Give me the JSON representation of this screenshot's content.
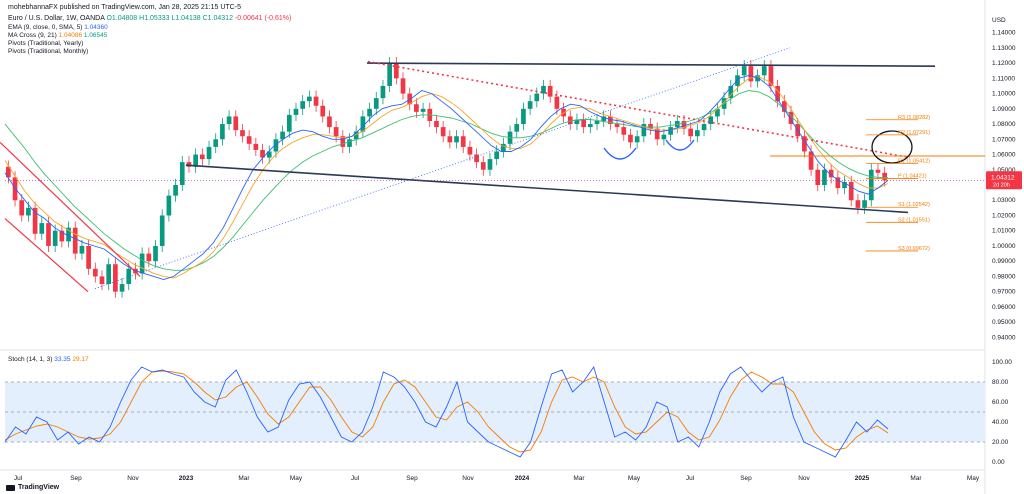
{
  "header": {
    "published": "mohebhannaFX published on TradingView.com, Jan 28, 2025 21:15 UTC-5",
    "symbol_line": "Euro / U.S. Dollar, 1W, OANDA",
    "o": "O1.04808",
    "h": "H1.05333",
    "l": "L1.04138",
    "c": "C1.04312",
    "chg": "-0.00641 (-0.61%)",
    "ema_label": "EMA (9, close, 0, SMA, 5)",
    "ema_value": "1.04360",
    "ma_label": "MA Cross (9, 21)",
    "ma_value1": "1.04086",
    "ma_value2": "1.06545",
    "pivots_yearly": "Pivots (Traditional, Yearly)",
    "pivots_monthly": "Pivots (Traditional, Monthly)"
  },
  "stoch_label": "Stoch (14, 1, 3)",
  "stoch_k": "33.35",
  "stoch_d": "29.17",
  "currency": "USD",
  "brand": "TradingView",
  "price_badge": {
    "price": "1.04312",
    "timer": "2d 20h"
  },
  "colors": {
    "up": "#089981",
    "down": "#f23645",
    "ema": "#2962ff",
    "ma_fast": "#f5a623",
    "ma_slow": "#3cbf6e",
    "pivot": "#f57c00",
    "trend": "#2a3a55",
    "channel": "#f23645",
    "stoch_k": "#2962ff",
    "stoch_d": "#f57c00",
    "stoch_band": "#e3effd"
  },
  "chart_data": {
    "type": "candlestick",
    "x_axis_labels": [
      "Jul",
      "Sep",
      "Nov",
      "2023",
      "Mar",
      "May",
      "Jul",
      "Sep",
      "Nov",
      "2024",
      "Mar",
      "May",
      "Jul",
      "Sep",
      "Nov",
      "2025",
      "Mar",
      "May"
    ],
    "y_ticks": [
      "1.14000",
      "1.13000",
      "1.12000",
      "1.11000",
      "1.10000",
      "1.09000",
      "1.08000",
      "1.07000",
      "1.06000",
      "1.05000",
      "1.04000",
      "1.03000",
      "1.02000",
      "1.01000",
      "1.00000",
      "0.99000",
      "0.98000",
      "0.97000",
      "0.96000",
      "0.95000",
      "0.94000"
    ],
    "y_tick_values": [
      1.14,
      1.13,
      1.12,
      1.11,
      1.1,
      1.09,
      1.08,
      1.07,
      1.06,
      1.05,
      1.04,
      1.03,
      1.02,
      1.01,
      1.0,
      0.99,
      0.98,
      0.97,
      0.96,
      0.95,
      0.94
    ],
    "ylim": [
      0.935,
      1.145
    ],
    "pivots": [
      {
        "label": "R3 (1.08282)",
        "value": 1.08282
      },
      {
        "label": "R2 (1.07291)",
        "value": 1.07291
      },
      {
        "label": "R1 (1.05412)",
        "value": 1.05412
      },
      {
        "label": "P (1.04421)",
        "value": 1.04421
      },
      {
        "label": "S1 (1.02542)",
        "value": 1.02542
      },
      {
        "label": "S2 (1.01551)",
        "value": 1.01551
      },
      {
        "label": "S3 (0.99672)",
        "value": 0.99672
      }
    ],
    "candles": [
      [
        1.052,
        1.045
      ],
      [
        1.045,
        1.03
      ],
      [
        1.03,
        1.02
      ],
      [
        1.02,
        1.025
      ],
      [
        1.025,
        1.008
      ],
      [
        1.008,
        1.015
      ],
      [
        1.015,
        1.0
      ],
      [
        1.0,
        1.01
      ],
      [
        1.01,
        1.003
      ],
      [
        1.003,
        1.012
      ],
      [
        1.012,
        0.995
      ],
      [
        0.995,
        1.0
      ],
      [
        1.0,
        0.985
      ],
      [
        0.985,
        0.98
      ],
      [
        0.98,
        0.975
      ],
      [
        0.975,
        0.988
      ],
      [
        0.988,
        0.97
      ],
      [
        0.97,
        0.975
      ],
      [
        0.975,
        0.985
      ],
      [
        0.985,
        0.982
      ],
      [
        0.982,
        0.995
      ],
      [
        0.995,
        0.99
      ],
      [
        0.99,
        1.0
      ],
      [
        1.0,
        1.02
      ],
      [
        1.02,
        1.033
      ],
      [
        1.033,
        1.04
      ],
      [
        1.04,
        1.055
      ],
      [
        1.055,
        1.052
      ],
      [
        1.052,
        1.06
      ],
      [
        1.06,
        1.057
      ],
      [
        1.057,
        1.065
      ],
      [
        1.065,
        1.07
      ],
      [
        1.07,
        1.08
      ],
      [
        1.08,
        1.085
      ],
      [
        1.085,
        1.076
      ],
      [
        1.076,
        1.072
      ],
      [
        1.072,
        1.067
      ],
      [
        1.067,
        1.063
      ],
      [
        1.063,
        1.058
      ],
      [
        1.058,
        1.062
      ],
      [
        1.062,
        1.07
      ],
      [
        1.07,
        1.075
      ],
      [
        1.075,
        1.086
      ],
      [
        1.086,
        1.09
      ],
      [
        1.09,
        1.095
      ],
      [
        1.095,
        1.098
      ],
      [
        1.098,
        1.092
      ],
      [
        1.092,
        1.085
      ],
      [
        1.085,
        1.078
      ],
      [
        1.078,
        1.072
      ],
      [
        1.072,
        1.065
      ],
      [
        1.065,
        1.07
      ],
      [
        1.07,
        1.075
      ],
      [
        1.075,
        1.085
      ],
      [
        1.085,
        1.09
      ],
      [
        1.09,
        1.097
      ],
      [
        1.097,
        1.105
      ],
      [
        1.105,
        1.12
      ],
      [
        1.12,
        1.11
      ],
      [
        1.11,
        1.1
      ],
      [
        1.1,
        1.093
      ],
      [
        1.093,
        1.088
      ],
      [
        1.088,
        1.09
      ],
      [
        1.09,
        1.082
      ],
      [
        1.082,
        1.078
      ],
      [
        1.078,
        1.072
      ],
      [
        1.072,
        1.068
      ],
      [
        1.068,
        1.072
      ],
      [
        1.072,
        1.065
      ],
      [
        1.065,
        1.06
      ],
      [
        1.06,
        1.055
      ],
      [
        1.055,
        1.05
      ],
      [
        1.05,
        1.057
      ],
      [
        1.057,
        1.062
      ],
      [
        1.062,
        1.067
      ],
      [
        1.067,
        1.075
      ],
      [
        1.075,
        1.08
      ],
      [
        1.08,
        1.09
      ],
      [
        1.09,
        1.095
      ],
      [
        1.095,
        1.1
      ],
      [
        1.1,
        1.105
      ],
      [
        1.105,
        1.098
      ],
      [
        1.098,
        1.09
      ],
      [
        1.09,
        1.085
      ],
      [
        1.085,
        1.08
      ],
      [
        1.08,
        1.083
      ],
      [
        1.083,
        1.078
      ],
      [
        1.078,
        1.08
      ],
      [
        1.08,
        1.082
      ],
      [
        1.082,
        1.085
      ],
      [
        1.085,
        1.08
      ],
      [
        1.08,
        1.078
      ],
      [
        1.078,
        1.073
      ],
      [
        1.073,
        1.068
      ],
      [
        1.068,
        1.072
      ],
      [
        1.072,
        1.08
      ],
      [
        1.08,
        1.077
      ],
      [
        1.077,
        1.07
      ],
      [
        1.07,
        1.073
      ],
      [
        1.073,
        1.078
      ],
      [
        1.078,
        1.082
      ],
      [
        1.082,
        1.077
      ],
      [
        1.077,
        1.072
      ],
      [
        1.072,
        1.076
      ],
      [
        1.076,
        1.08
      ],
      [
        1.08,
        1.085
      ],
      [
        1.085,
        1.09
      ],
      [
        1.09,
        1.097
      ],
      [
        1.097,
        1.105
      ],
      [
        1.105,
        1.112
      ],
      [
        1.112,
        1.118
      ],
      [
        1.118,
        1.108
      ],
      [
        1.108,
        1.112
      ],
      [
        1.112,
        1.118
      ],
      [
        1.118,
        1.105
      ],
      [
        1.105,
        1.095
      ],
      [
        1.095,
        1.088
      ],
      [
        1.088,
        1.08
      ],
      [
        1.08,
        1.072
      ],
      [
        1.072,
        1.062
      ],
      [
        1.062,
        1.05
      ],
      [
        1.05,
        1.04
      ],
      [
        1.04,
        1.05
      ],
      [
        1.05,
        1.045
      ],
      [
        1.045,
        1.038
      ],
      [
        1.038,
        1.042
      ],
      [
        1.042,
        1.03
      ],
      [
        1.03,
        1.025
      ],
      [
        1.025,
        1.03
      ],
      [
        1.03,
        1.05
      ],
      [
        1.05,
        1.048
      ],
      [
        1.048,
        1.043
      ]
    ],
    "ema_path": [
      1.048,
      1.038,
      1.03,
      1.022,
      1.018,
      1.012,
      1.008,
      1.005,
      1.002,
      1.0,
      0.998,
      0.993,
      0.988,
      0.984,
      0.982,
      0.98,
      0.978,
      0.98,
      0.985,
      0.99,
      0.995,
      1.002,
      1.012,
      1.025,
      1.038,
      1.05,
      1.058,
      1.065,
      1.07,
      1.074,
      1.076,
      1.075,
      1.072,
      1.07,
      1.07,
      1.072,
      1.078,
      1.085,
      1.09,
      1.092,
      1.093,
      1.097,
      1.102,
      1.1,
      1.095,
      1.09,
      1.084,
      1.078,
      1.072,
      1.066,
      1.062,
      1.062,
      1.065,
      1.07,
      1.078,
      1.085,
      1.09,
      1.093,
      1.092,
      1.088,
      1.085,
      1.083,
      1.082,
      1.08,
      1.078,
      1.076,
      1.075,
      1.076,
      1.078,
      1.08,
      1.082,
      1.088,
      1.095,
      1.103,
      1.11,
      1.112,
      1.11,
      1.105,
      1.095,
      1.085,
      1.075,
      1.065,
      1.055,
      1.048,
      1.043,
      1.04,
      1.036,
      1.034,
      1.038,
      1.043
    ],
    "ma_fast_path": [
      1.056,
      1.046,
      1.036,
      1.028,
      1.022,
      1.016,
      1.012,
      1.008,
      1.005,
      1.003,
      1.001,
      0.996,
      0.992,
      0.988,
      0.985,
      0.982,
      0.98,
      0.979,
      0.982,
      0.986,
      0.99,
      0.996,
      1.005,
      1.016,
      1.028,
      1.04,
      1.05,
      1.058,
      1.064,
      1.068,
      1.071,
      1.073,
      1.073,
      1.072,
      1.071,
      1.072,
      1.075,
      1.08,
      1.085,
      1.089,
      1.091,
      1.094,
      1.098,
      1.1,
      1.098,
      1.094,
      1.089,
      1.083,
      1.077,
      1.071,
      1.066,
      1.064,
      1.064,
      1.067,
      1.073,
      1.08,
      1.086,
      1.09,
      1.091,
      1.09,
      1.087,
      1.085,
      1.083,
      1.081,
      1.079,
      1.077,
      1.076,
      1.076,
      1.077,
      1.079,
      1.081,
      1.085,
      1.091,
      1.098,
      1.105,
      1.11,
      1.111,
      1.108,
      1.101,
      1.092,
      1.082,
      1.072,
      1.063,
      1.055,
      1.049,
      1.045,
      1.041,
      1.038,
      1.038,
      1.041
    ],
    "ma_slow_path": [
      1.08,
      1.072,
      1.064,
      1.055,
      1.047,
      1.04,
      1.033,
      1.026,
      1.02,
      1.014,
      1.008,
      1.003,
      0.998,
      0.994,
      0.99,
      0.987,
      0.985,
      0.984,
      0.984,
      0.986,
      0.989,
      0.993,
      0.999,
      1.006,
      1.014,
      1.022,
      1.03,
      1.037,
      1.044,
      1.05,
      1.055,
      1.059,
      1.062,
      1.065,
      1.067,
      1.069,
      1.071,
      1.074,
      1.077,
      1.08,
      1.083,
      1.085,
      1.086,
      1.086,
      1.085,
      1.084,
      1.082,
      1.08,
      1.077,
      1.074,
      1.072,
      1.071,
      1.071,
      1.072,
      1.074,
      1.077,
      1.08,
      1.082,
      1.083,
      1.083,
      1.082,
      1.081,
      1.08,
      1.079,
      1.078,
      1.078,
      1.078,
      1.079,
      1.08,
      1.082,
      1.084,
      1.087,
      1.091,
      1.096,
      1.1,
      1.102,
      1.101,
      1.098,
      1.093,
      1.087,
      1.08,
      1.073,
      1.066,
      1.06,
      1.055,
      1.051,
      1.048,
      1.046,
      1.045,
      1.045
    ],
    "stoch_k": [
      20,
      35,
      28,
      45,
      40,
      22,
      30,
      18,
      25,
      20,
      35,
      60,
      82,
      95,
      90,
      92,
      88,
      85,
      70,
      60,
      55,
      82,
      92,
      70,
      45,
      30,
      35,
      62,
      78,
      80,
      65,
      45,
      25,
      20,
      30,
      55,
      90,
      85,
      75,
      60,
      40,
      35,
      55,
      80,
      40,
      30,
      20,
      15,
      10,
      5,
      20,
      55,
      88,
      92,
      70,
      80,
      95,
      60,
      25,
      30,
      22,
      35,
      60,
      55,
      20,
      25,
      15,
      40,
      70,
      88,
      95,
      82,
      70,
      80,
      85,
      45,
      20,
      15,
      10,
      5,
      22,
      40,
      30,
      42,
      33
    ],
    "stoch_d": [
      22,
      28,
      32,
      36,
      38,
      35,
      30,
      25,
      23,
      24,
      28,
      40,
      60,
      80,
      90,
      91,
      90,
      88,
      80,
      70,
      62,
      65,
      75,
      80,
      65,
      48,
      38,
      45,
      60,
      75,
      75,
      62,
      45,
      30,
      25,
      35,
      60,
      78,
      82,
      75,
      60,
      45,
      42,
      55,
      60,
      50,
      35,
      25,
      15,
      10,
      12,
      30,
      60,
      82,
      85,
      80,
      85,
      80,
      55,
      35,
      28,
      30,
      40,
      50,
      45,
      30,
      22,
      25,
      42,
      65,
      82,
      90,
      85,
      78,
      78,
      70,
      50,
      30,
      18,
      12,
      14,
      25,
      32,
      36,
      29
    ],
    "stoch_levels": [
      80,
      50,
      20
    ],
    "stoch_ticks": [
      "100.00",
      "80.00",
      "60.00",
      "40.00",
      "20.00",
      "0.00"
    ],
    "stoch_tick_values": [
      100,
      80,
      60,
      40,
      20,
      0
    ]
  }
}
